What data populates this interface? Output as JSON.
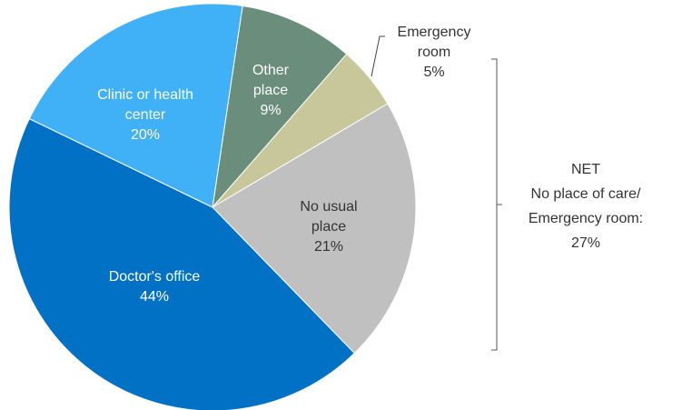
{
  "chart_data": {
    "type": "pie",
    "categories": [
      "Other place",
      "Emergency room",
      "No usual place",
      "Doctor's office",
      "Clinic or health center"
    ],
    "values": [
      9,
      5,
      21,
      44,
      20
    ],
    "value_labels": [
      "9%",
      "5%",
      "21%",
      "44%",
      "20%"
    ],
    "colors": [
      "#6a8d7c",
      "#c7c79b",
      "#c0c0c0",
      "#0071c5",
      "#41b1f7"
    ],
    "annotation": {
      "lines": [
        "NET",
        "No place of care/",
        "Emergency room:"
      ],
      "value": 27,
      "label": "27%"
    }
  }
}
